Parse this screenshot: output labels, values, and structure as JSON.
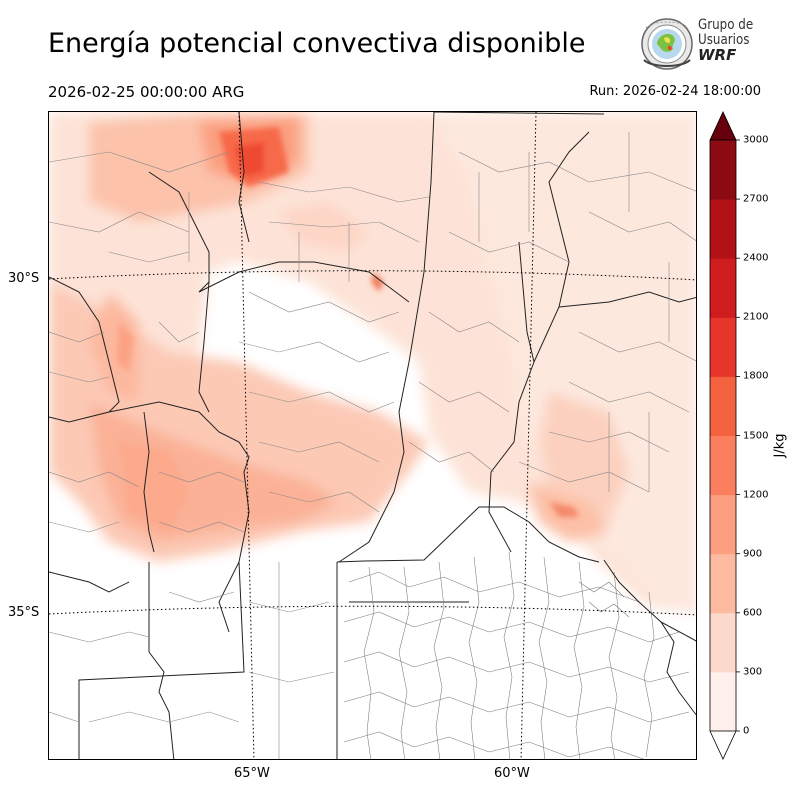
{
  "header": {
    "title": "Energía potencial convectiva disponible",
    "valid_time": "2026-02-25 00:00:00 ARG",
    "run_time": "Run: 2026-02-24 18:00:00"
  },
  "logo": {
    "line1": "Grupo de",
    "line2": "Usuarios",
    "line3": "WRF"
  },
  "map": {
    "lat_labels": [
      "30°S",
      "35°S"
    ],
    "lon_labels": [
      "65°W",
      "60°W"
    ],
    "variable": "CAPE"
  },
  "colorbar": {
    "unit": "J/kg",
    "ticks": [
      "0",
      "300",
      "600",
      "900",
      "1200",
      "1500",
      "1800",
      "2100",
      "2400",
      "2700",
      "3000"
    ],
    "colors": [
      "#fff0eb",
      "#fdd9cb",
      "#fcbba1",
      "#fc9e80",
      "#fb7f5f",
      "#f4613f",
      "#e8352b",
      "#cf1c1f",
      "#b11117",
      "#8c0b13"
    ],
    "over_color": "#67000d",
    "under_color": "#ffffff"
  }
}
